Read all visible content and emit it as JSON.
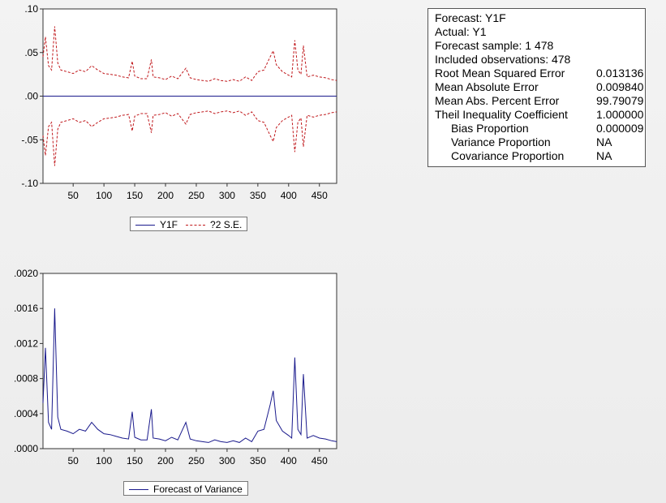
{
  "charts": [
    {
      "legend": {
        "series1": "Y1F",
        "series2": "?2 S.E."
      }
    },
    {
      "legend": {
        "series1": "Forecast of Variance"
      }
    }
  ],
  "chart_data": [
    {
      "type": "line",
      "x_range": [
        1,
        478
      ],
      "xticks": [
        50,
        100,
        150,
        200,
        250,
        300,
        350,
        400,
        450
      ],
      "ylim": [
        -0.1,
        0.1
      ],
      "yticks": [
        ".10",
        ".05",
        ".00",
        "-.05",
        "-.10"
      ],
      "ytick_values": [
        0.1,
        0.05,
        0.0,
        -0.05,
        -0.1
      ],
      "series": [
        {
          "name": "Y1F",
          "style": "solid",
          "color": "#1a1a8c",
          "x": [
            1,
            478
          ],
          "values": [
            0.0,
            0.0
          ]
        },
        {
          "name": "?2 S.E.",
          "style": "dashed",
          "color": "#c0181c",
          "x": [
            1,
            5,
            10,
            15,
            20,
            25,
            30,
            40,
            50,
            60,
            70,
            80,
            90,
            100,
            110,
            120,
            130,
            140,
            146,
            150,
            160,
            170,
            177,
            180,
            190,
            200,
            210,
            220,
            233,
            240,
            250,
            260,
            270,
            280,
            290,
            300,
            310,
            320,
            330,
            340,
            350,
            360,
            370,
            375,
            380,
            390,
            400,
            405,
            410,
            415,
            420,
            424,
            430,
            440,
            450,
            460,
            470,
            478
          ],
          "values": [
            0.045,
            0.068,
            0.035,
            0.03,
            0.08,
            0.038,
            0.03,
            0.028,
            0.026,
            0.03,
            0.028,
            0.035,
            0.03,
            0.026,
            0.025,
            0.024,
            0.022,
            0.021,
            0.04,
            0.023,
            0.02,
            0.02,
            0.042,
            0.022,
            0.021,
            0.019,
            0.023,
            0.02,
            0.032,
            0.021,
            0.019,
            0.018,
            0.017,
            0.02,
            0.018,
            0.017,
            0.019,
            0.017,
            0.022,
            0.018,
            0.028,
            0.03,
            0.045,
            0.052,
            0.036,
            0.028,
            0.024,
            0.022,
            0.064,
            0.03,
            0.025,
            0.058,
            0.022,
            0.024,
            0.022,
            0.021,
            0.019,
            0.018
          ]
        }
      ]
    },
    {
      "type": "line",
      "x_range": [
        1,
        478
      ],
      "xticks": [
        50,
        100,
        150,
        200,
        250,
        300,
        350,
        400,
        450
      ],
      "ylim": [
        0,
        0.002
      ],
      "yticks": [
        ".0020",
        ".0016",
        ".0012",
        ".0008",
        ".0004",
        ".0000"
      ],
      "ytick_values": [
        0.002,
        0.0016,
        0.0012,
        0.0008,
        0.0004,
        0.0
      ],
      "series": [
        {
          "name": "Forecast of Variance",
          "style": "solid",
          "color": "#1a1a8c",
          "x": [
            1,
            5,
            10,
            15,
            20,
            25,
            30,
            40,
            50,
            60,
            70,
            80,
            90,
            100,
            110,
            120,
            130,
            140,
            146,
            150,
            160,
            170,
            177,
            180,
            190,
            200,
            210,
            220,
            233,
            240,
            250,
            260,
            270,
            280,
            290,
            300,
            310,
            320,
            330,
            340,
            350,
            360,
            370,
            375,
            380,
            390,
            400,
            405,
            410,
            415,
            420,
            424,
            430,
            440,
            450,
            460,
            470,
            478
          ],
          "values": [
            0.00052,
            0.00115,
            0.0003,
            0.00022,
            0.0016,
            0.00036,
            0.00022,
            0.0002,
            0.00017,
            0.00022,
            0.0002,
            0.0003,
            0.00022,
            0.00017,
            0.00016,
            0.00014,
            0.00012,
            0.00011,
            0.00042,
            0.00013,
            0.0001,
            0.0001,
            0.00045,
            0.00012,
            0.00011,
            9e-05,
            0.00013,
            0.0001,
            0.0003,
            0.00011,
            9e-05,
            8e-05,
            7e-05,
            0.0001,
            8e-05,
            7e-05,
            9e-05,
            7e-05,
            0.00012,
            8e-05,
            0.0002,
            0.00022,
            0.0005,
            0.00066,
            0.00032,
            0.0002,
            0.00015,
            0.00012,
            0.00104,
            0.00022,
            0.00016,
            0.00085,
            0.00012,
            0.00015,
            0.00012,
            0.00011,
            9e-05,
            8e-05
          ]
        }
      ]
    }
  ],
  "stats": [
    {
      "label": "Forecast: Y1F",
      "value": "",
      "indent": false
    },
    {
      "label": "Actual: Y1",
      "value": "",
      "indent": false
    },
    {
      "label": "Forecast sample: 1 478",
      "value": "",
      "indent": false
    },
    {
      "label": "Included observations: 478",
      "value": "",
      "indent": false
    },
    {
      "label": "Root Mean Squared Error",
      "value": "0.013136",
      "indent": false
    },
    {
      "label": "Mean Absolute Error",
      "value": "0.009840",
      "indent": false
    },
    {
      "label": "Mean Abs. Percent Error",
      "value": "99.79079",
      "indent": false
    },
    {
      "label": "Theil Inequality Coefficient",
      "value": "1.000000",
      "indent": false
    },
    {
      "label": "Bias Proportion",
      "value": "0.000009",
      "indent": true
    },
    {
      "label": "Variance Proportion",
      "value": "NA",
      "indent": true
    },
    {
      "label": "Covariance Proportion",
      "value": "NA",
      "indent": true
    }
  ]
}
